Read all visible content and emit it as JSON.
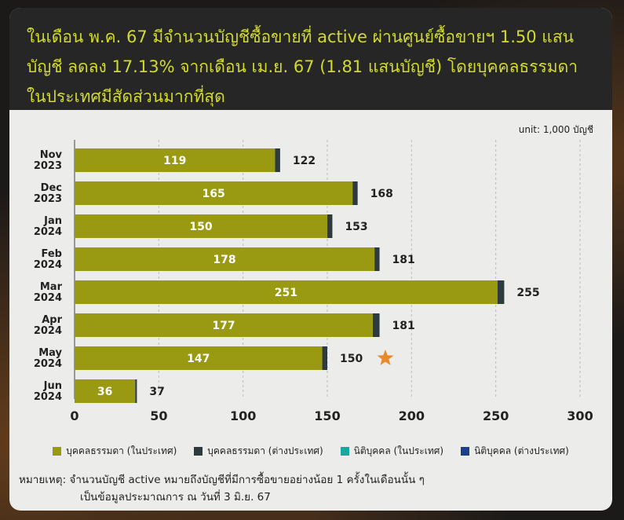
{
  "headline": "ในเดือน พ.ค. 67 มีจำนวนบัญชีซื้อขายที่ active ผ่านศูนย์ซื้อขายฯ 1.50 แสนบัญชี ลดลง 17.13% จากเดือน เม.ย. 67 (1.81 แสนบัญชี) โดยบุคคลธรรมดาในประเทศมีสัดส่วนมากที่สุด",
  "unit_label": "unit: 1,000 บัญชี",
  "colors": {
    "thai_individual": "#9a9a12",
    "foreign_individual": "#2e3b3e",
    "thai_juristic": "#1aa7a0",
    "foreign_juristic": "#1e3f8a",
    "headline": "#d2db2a",
    "star": "#e98a2b"
  },
  "chart_data": {
    "type": "bar",
    "orientation": "horizontal",
    "stacked": true,
    "categories": [
      "Nov\n2023",
      "Dec\n2023",
      "Jan\n2024",
      "Feb\n2024",
      "Mar\n2024",
      "Apr\n2024",
      "May\n2024",
      "Jun\n2024"
    ],
    "series": [
      {
        "name": "บุคคลธรรมดา (ในประเทศ)",
        "values": [
          119,
          165,
          150,
          178,
          251,
          177,
          147,
          36
        ]
      },
      {
        "name": "บุคคลธรรมดา (ต่างประเทศ)",
        "values": [
          3,
          3,
          3,
          3,
          4,
          4,
          3,
          1
        ]
      },
      {
        "name": "นิติบุคคล (ในประเทศ)",
        "values": [
          0,
          0,
          0,
          0,
          0,
          0,
          0,
          0
        ]
      },
      {
        "name": "นิติบุคคล (ต่างประเทศ)",
        "values": [
          0,
          0,
          0,
          0,
          0,
          0,
          0,
          0
        ]
      }
    ],
    "totals": [
      122,
      168,
      153,
      181,
      255,
      181,
      150,
      37
    ],
    "inner_labels": [
      "119",
      "165",
      "150",
      "178",
      "251",
      "177",
      "147",
      "36"
    ],
    "total_labels": [
      "122",
      "168",
      "153",
      "181",
      "255",
      "181",
      "150",
      "37"
    ],
    "highlight_category": "May\n2024",
    "xlim": [
      0,
      300
    ],
    "xticks": [
      0,
      50,
      100,
      150,
      200,
      250,
      300
    ],
    "grid": "vertical dashed",
    "legend_position": "bottom"
  },
  "legend": [
    {
      "label": "บุคคลธรรมดา (ในประเทศ)",
      "color": "#9a9a12"
    },
    {
      "label": "บุคคลธรรมดา (ต่างประเทศ)",
      "color": "#2e3b3e"
    },
    {
      "label": "นิติบุคคล (ในประเทศ)",
      "color": "#1aa7a0"
    },
    {
      "label": "นิติบุคคล (ต่างประเทศ)",
      "color": "#1e3f8a"
    }
  ],
  "footnote": {
    "line1": "หมายเหตุ: จำนวนบัญชี active หมายถึงบัญชีที่มีการซื้อขายอย่างน้อย 1 ครั้งในเดือนนั้น ๆ",
    "line2": "เป็นข้อมูลประมาณการ ณ วันที่ 3 มิ.ย. 67"
  }
}
